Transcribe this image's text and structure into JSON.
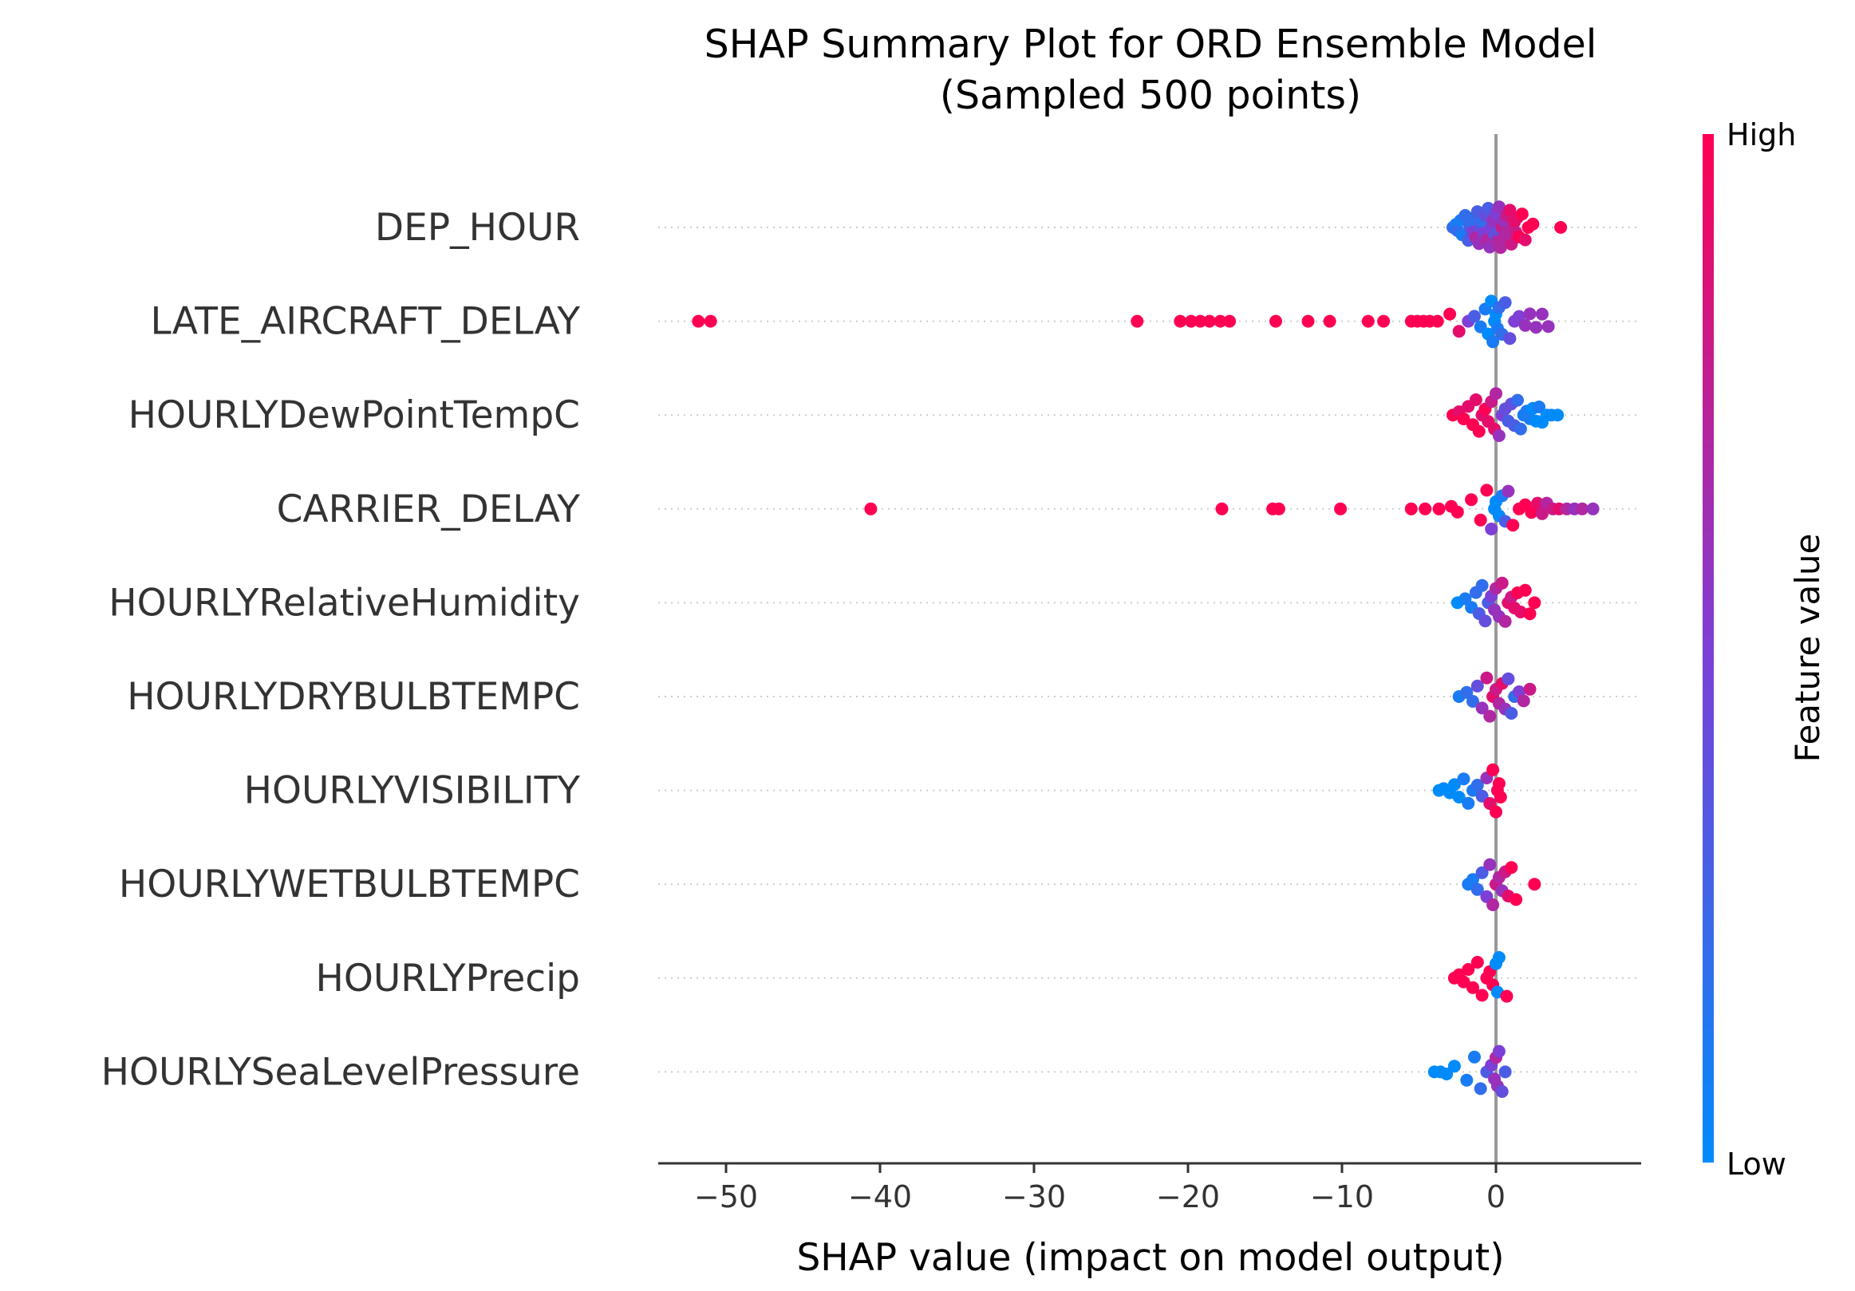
{
  "chart_data": {
    "type": "scatter",
    "title": [
      "SHAP Summary Plot for ORD Ensemble Model",
      "(Sampled 500 points)"
    ],
    "xlabel": "SHAP value (impact on model output)",
    "xlim": [
      -55,
      9
    ],
    "xticks": [
      -50,
      -40,
      -30,
      -20,
      -10,
      0
    ],
    "xtick_labels": [
      "−50",
      "−40",
      "−30",
      "−20",
      "−10",
      "0"
    ],
    "colorbar": {
      "title": "Feature value",
      "high_label": "High",
      "low_label": "Low",
      "high_color": "#ff0052",
      "mid_color": "#7d3fd6",
      "low_color": "#008bfb"
    },
    "features": [
      {
        "name": "DEP_HOUR",
        "points": [
          [
            -2.8,
            0.2
          ],
          [
            -2.6,
            0.1
          ],
          [
            -2.5,
            0.2
          ],
          [
            -2.3,
            0.1
          ],
          [
            -2.2,
            0.1
          ],
          [
            -2.0,
            0.2
          ],
          [
            -1.8,
            0.3
          ],
          [
            -1.7,
            0.3
          ],
          [
            -1.6,
            0.2
          ],
          [
            -1.5,
            0.5
          ],
          [
            -1.4,
            0.2
          ],
          [
            -1.3,
            0.7
          ],
          [
            -1.2,
            0.3
          ],
          [
            -1.1,
            0.6
          ],
          [
            -1.0,
            0.4
          ],
          [
            -0.9,
            0.2
          ],
          [
            -0.8,
            0.5
          ],
          [
            -0.7,
            0.4
          ],
          [
            -0.6,
            0.7
          ],
          [
            -0.5,
            0.3
          ],
          [
            -0.4,
            0.6
          ],
          [
            -0.3,
            0.5
          ],
          [
            -0.2,
            0.6
          ],
          [
            -0.1,
            0.4
          ],
          [
            0.0,
            0.5
          ],
          [
            0.1,
            0.7
          ],
          [
            0.2,
            0.6
          ],
          [
            0.3,
            0.7
          ],
          [
            0.4,
            0.8
          ],
          [
            0.5,
            0.6
          ],
          [
            0.6,
            0.7
          ],
          [
            0.7,
            0.8
          ],
          [
            0.8,
            0.7
          ],
          [
            0.9,
            0.9
          ],
          [
            1.0,
            0.8
          ],
          [
            1.1,
            0.7
          ],
          [
            1.2,
            0.9
          ],
          [
            1.3,
            0.8
          ],
          [
            1.4,
            0.9
          ],
          [
            1.5,
            1.0
          ],
          [
            1.7,
            1.0
          ],
          [
            1.9,
            0.9
          ],
          [
            2.1,
            1.0
          ],
          [
            2.4,
            1.0
          ],
          [
            4.2,
            1.0
          ]
        ]
      },
      {
        "name": "LATE_AIRCRAFT_DELAY",
        "points": [
          [
            -51.8,
            1.0
          ],
          [
            -51.0,
            1.0
          ],
          [
            -23.3,
            1.0
          ],
          [
            -20.5,
            1.0
          ],
          [
            -19.8,
            1.0
          ],
          [
            -19.2,
            1.0
          ],
          [
            -18.6,
            1.0
          ],
          [
            -17.9,
            1.0
          ],
          [
            -17.3,
            1.0
          ],
          [
            -14.3,
            1.0
          ],
          [
            -12.2,
            1.0
          ],
          [
            -10.8,
            1.0
          ],
          [
            -8.3,
            1.0
          ],
          [
            -7.3,
            1.0
          ],
          [
            -5.5,
            1.0
          ],
          [
            -5.1,
            1.0
          ],
          [
            -4.7,
            1.0
          ],
          [
            -4.3,
            1.0
          ],
          [
            -3.8,
            1.0
          ],
          [
            -3.0,
            1.0
          ],
          [
            -2.4,
            0.9
          ],
          [
            -1.8,
            0.5
          ],
          [
            -1.4,
            0.3
          ],
          [
            -1.0,
            0.1
          ],
          [
            -0.7,
            0.1
          ],
          [
            -0.5,
            0.0
          ],
          [
            -0.3,
            0.0
          ],
          [
            -0.2,
            0.1
          ],
          [
            -0.1,
            0.0
          ],
          [
            0.0,
            0.0
          ],
          [
            0.1,
            0.1
          ],
          [
            0.2,
            0.2
          ],
          [
            0.4,
            0.2
          ],
          [
            0.6,
            0.3
          ],
          [
            0.9,
            0.4
          ],
          [
            1.2,
            0.5
          ],
          [
            1.5,
            0.5
          ],
          [
            1.9,
            0.6
          ],
          [
            2.2,
            0.6
          ],
          [
            2.6,
            0.6
          ],
          [
            3.0,
            0.6
          ],
          [
            3.4,
            0.6
          ]
        ]
      },
      {
        "name": "HOURLYDewPointTempC",
        "points": [
          [
            -2.8,
            1.0
          ],
          [
            -2.4,
            0.9
          ],
          [
            -2.1,
            1.0
          ],
          [
            -1.8,
            0.9
          ],
          [
            -1.5,
            1.0
          ],
          [
            -1.3,
            0.9
          ],
          [
            -1.1,
            1.0
          ],
          [
            -0.9,
            0.9
          ],
          [
            -0.7,
            1.0
          ],
          [
            -0.5,
            0.9
          ],
          [
            -0.3,
            0.8
          ],
          [
            -0.1,
            0.9
          ],
          [
            0.0,
            0.7
          ],
          [
            0.2,
            0.6
          ],
          [
            0.4,
            0.5
          ],
          [
            0.6,
            0.4
          ],
          [
            0.8,
            0.3
          ],
          [
            1.0,
            0.4
          ],
          [
            1.2,
            0.3
          ],
          [
            1.4,
            0.2
          ],
          [
            1.6,
            0.2
          ],
          [
            1.8,
            0.1
          ],
          [
            2.0,
            0.1
          ],
          [
            2.2,
            0.1
          ],
          [
            2.4,
            0.0
          ],
          [
            2.6,
            0.0
          ],
          [
            2.8,
            0.1
          ],
          [
            3.0,
            0.0
          ],
          [
            3.3,
            0.0
          ],
          [
            3.6,
            0.0
          ],
          [
            4.0,
            0.0
          ]
        ]
      },
      {
        "name": "CARRIER_DELAY",
        "points": [
          [
            -40.6,
            1.0
          ],
          [
            -17.8,
            1.0
          ],
          [
            -14.5,
            1.0
          ],
          [
            -14.1,
            1.0
          ],
          [
            -10.1,
            1.0
          ],
          [
            -5.5,
            1.0
          ],
          [
            -4.6,
            1.0
          ],
          [
            -3.7,
            1.0
          ],
          [
            -2.9,
            1.0
          ],
          [
            -2.5,
            1.0
          ],
          [
            -1.6,
            1.0
          ],
          [
            -1.0,
            1.0
          ],
          [
            -0.6,
            1.0
          ],
          [
            -0.3,
            0.5
          ],
          [
            -0.1,
            0.0
          ],
          [
            0.0,
            0.0
          ],
          [
            0.2,
            0.0
          ],
          [
            0.4,
            0.1
          ],
          [
            0.6,
            0.3
          ],
          [
            0.8,
            0.6
          ],
          [
            1.1,
            1.0
          ],
          [
            1.5,
            1.0
          ],
          [
            1.9,
            1.0
          ],
          [
            2.3,
            1.0
          ],
          [
            2.7,
            0.9
          ],
          [
            3.0,
            0.8
          ],
          [
            3.3,
            0.7
          ],
          [
            3.7,
            0.8
          ],
          [
            4.1,
            0.9
          ],
          [
            4.6,
            0.7
          ],
          [
            5.1,
            0.6
          ],
          [
            5.6,
            0.7
          ],
          [
            6.3,
            0.6
          ]
        ]
      },
      {
        "name": "HOURLYRelativeHumidity",
        "points": [
          [
            -2.5,
            0.0
          ],
          [
            -2.0,
            0.1
          ],
          [
            -1.6,
            0.1
          ],
          [
            -1.3,
            0.2
          ],
          [
            -1.1,
            0.3
          ],
          [
            -0.9,
            0.2
          ],
          [
            -0.7,
            0.4
          ],
          [
            -0.5,
            0.3
          ],
          [
            -0.3,
            0.5
          ],
          [
            -0.1,
            0.6
          ],
          [
            0.0,
            0.7
          ],
          [
            0.2,
            0.6
          ],
          [
            0.4,
            0.8
          ],
          [
            0.6,
            0.7
          ],
          [
            0.8,
            0.9
          ],
          [
            1.0,
            0.8
          ],
          [
            1.2,
            0.9
          ],
          [
            1.4,
            1.0
          ],
          [
            1.6,
            0.9
          ],
          [
            1.9,
            1.0
          ],
          [
            2.2,
            1.0
          ],
          [
            2.5,
            1.0
          ]
        ]
      },
      {
        "name": "HOURLYDRYBULBTEMPC",
        "points": [
          [
            -2.4,
            0.1
          ],
          [
            -1.9,
            0.2
          ],
          [
            -1.5,
            0.2
          ],
          [
            -1.2,
            0.4
          ],
          [
            -0.9,
            0.6
          ],
          [
            -0.6,
            0.8
          ],
          [
            -0.4,
            0.7
          ],
          [
            -0.2,
            0.9
          ],
          [
            0.0,
            0.8
          ],
          [
            0.2,
            0.7
          ],
          [
            0.4,
            0.9
          ],
          [
            0.6,
            0.6
          ],
          [
            0.8,
            0.4
          ],
          [
            1.0,
            0.3
          ],
          [
            1.2,
            0.2
          ],
          [
            1.5,
            0.5
          ],
          [
            1.8,
            0.7
          ],
          [
            2.2,
            0.8
          ]
        ]
      },
      {
        "name": "HOURLYVISIBILITY",
        "points": [
          [
            -3.7,
            0.0
          ],
          [
            -3.4,
            0.0
          ],
          [
            -3.0,
            0.0
          ],
          [
            -2.7,
            0.0
          ],
          [
            -2.4,
            0.0
          ],
          [
            -2.1,
            0.1
          ],
          [
            -1.8,
            0.1
          ],
          [
            -1.5,
            0.1
          ],
          [
            -1.2,
            0.2
          ],
          [
            -0.9,
            0.3
          ],
          [
            -0.6,
            0.6
          ],
          [
            -0.4,
            0.9
          ],
          [
            -0.2,
            1.0
          ],
          [
            0.0,
            1.0
          ],
          [
            0.1,
            1.0
          ],
          [
            0.2,
            1.0
          ],
          [
            0.3,
            1.0
          ]
        ]
      },
      {
        "name": "HOURLYWETBULBTEMPC",
        "points": [
          [
            -1.8,
            0.1
          ],
          [
            -1.5,
            0.1
          ],
          [
            -1.2,
            0.2
          ],
          [
            -0.9,
            0.3
          ],
          [
            -0.6,
            0.5
          ],
          [
            -0.4,
            0.6
          ],
          [
            -0.2,
            0.7
          ],
          [
            0.0,
            0.8
          ],
          [
            0.2,
            0.7
          ],
          [
            0.4,
            0.6
          ],
          [
            0.6,
            0.8
          ],
          [
            0.8,
            0.9
          ],
          [
            1.0,
            1.0
          ],
          [
            1.3,
            1.0
          ],
          [
            2.5,
            1.0
          ]
        ]
      },
      {
        "name": "HOURLYPrecip",
        "points": [
          [
            -2.7,
            1.0
          ],
          [
            -2.4,
            1.0
          ],
          [
            -2.1,
            1.0
          ],
          [
            -1.8,
            1.0
          ],
          [
            -1.5,
            1.0
          ],
          [
            -1.2,
            1.0
          ],
          [
            -0.9,
            1.0
          ],
          [
            -0.6,
            1.0
          ],
          [
            -0.4,
            1.0
          ],
          [
            -0.2,
            1.0
          ],
          [
            0.0,
            0.0
          ],
          [
            0.1,
            0.0
          ],
          [
            0.2,
            0.0
          ],
          [
            0.7,
            1.0
          ]
        ]
      },
      {
        "name": "HOURLYSeaLevelPressure",
        "points": [
          [
            -4.0,
            0.0
          ],
          [
            -3.6,
            0.0
          ],
          [
            -3.2,
            0.0
          ],
          [
            -2.7,
            0.0
          ],
          [
            -1.9,
            0.1
          ],
          [
            -1.4,
            0.1
          ],
          [
            -1.0,
            0.2
          ],
          [
            -0.6,
            0.3
          ],
          [
            -0.3,
            0.5
          ],
          [
            -0.1,
            0.6
          ],
          [
            0.0,
            0.7
          ],
          [
            0.1,
            0.6
          ],
          [
            0.2,
            0.5
          ],
          [
            0.4,
            0.4
          ],
          [
            0.6,
            0.3
          ]
        ]
      }
    ]
  }
}
